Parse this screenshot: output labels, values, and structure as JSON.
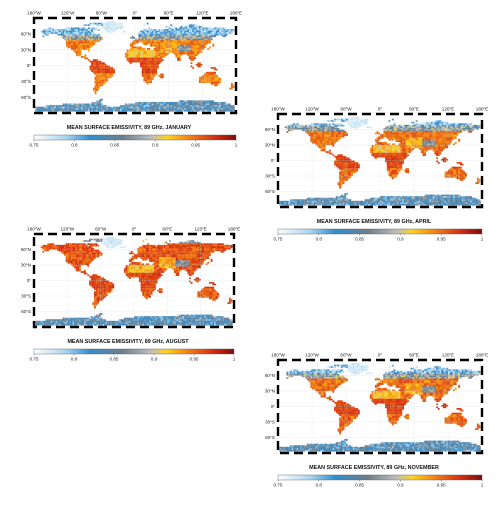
{
  "lat_labels": [
    "60",
    "30",
    "0",
    "30",
    "60"
  ],
  "lat_hemis": [
    "N",
    "N",
    "",
    "S",
    "S"
  ],
  "lon_labels": [
    "180",
    "120",
    "60",
    "0",
    "60",
    "120",
    "180"
  ],
  "lon_hemis": [
    "W",
    "W",
    "W",
    "",
    "E",
    "E",
    "E"
  ],
  "colorbar_ticks": [
    "0.75",
    "0.8",
    "0.85",
    "0.9",
    "0.95",
    "1"
  ],
  "colorbar_stops": [
    {
      "value": 0.75,
      "color": "#ffffff"
    },
    {
      "value": 0.79,
      "color": "#a8d4ee"
    },
    {
      "value": 0.82,
      "color": "#2f8ed0"
    },
    {
      "value": 0.86,
      "color": "#6f7f8c"
    },
    {
      "value": 0.895,
      "color": "#bdbdbd"
    },
    {
      "value": 0.915,
      "color": "#ffd21a"
    },
    {
      "value": 0.945,
      "color": "#f07a14"
    },
    {
      "value": 0.975,
      "color": "#d42a12"
    },
    {
      "value": 1.0,
      "color": "#7a0d0d"
    }
  ],
  "colors": {
    "ocean": "#ffffff",
    "frame": "#000000",
    "grid": "#cfcfcf"
  },
  "panels": [
    {
      "title": "MEAN SURFACE EMISSIVITY, 89 GHz, JANUARY"
    },
    {
      "title": "MEAN SURFACE EMISSIVITY, 89 GHz, APRIL"
    },
    {
      "title": "MEAN SURFACE EMISSIVITY, 89 GHz, AUGUST"
    },
    {
      "title": "MEAN SURFACE EMISSIVITY, 89 GHz, NOVEMBER"
    }
  ]
}
